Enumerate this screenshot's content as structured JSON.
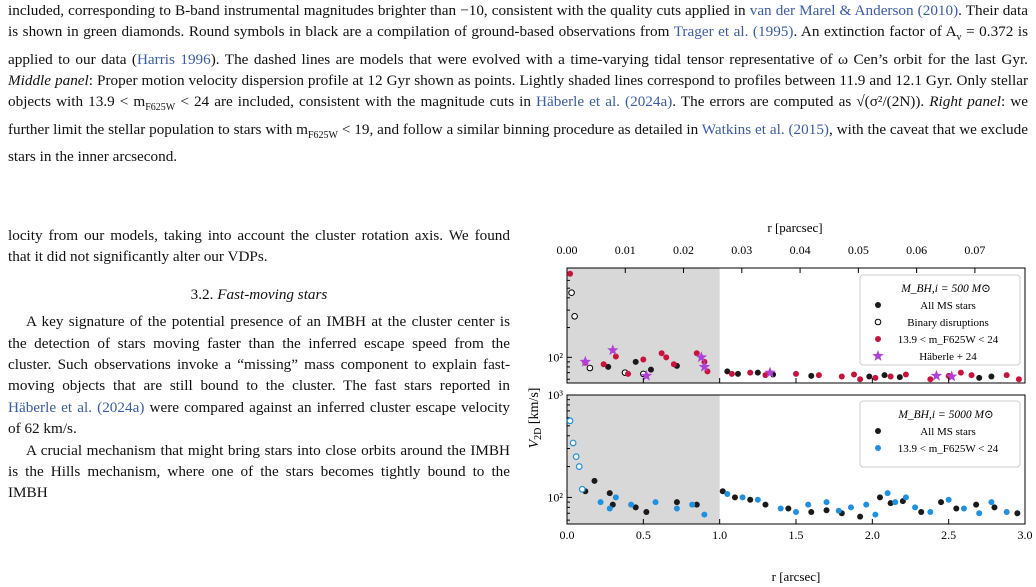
{
  "caption": {
    "line1": "included, corresponding to B-band instrumental magnitudes brighter than −10, consistent with the quality cuts applied in",
    "cite_vdm": "van der Marel & Anderson",
    "year_vdm": "2010",
    "line2_rest": ". Their data is shown in green diamonds. Round symbols in black are a compilation of ground-based observations from ",
    "cite_trager": "Trager et al.",
    "year_trager": "1995",
    "line3_mid": ". An extinction factor of A",
    "av_sub": "v",
    "av_rest": " = 0.372 is applied to our data (",
    "cite_harris": "Harris 1996",
    "line3_end": ").",
    "line4": "The dashed lines are models that were evolved with a time-varying tidal tensor representative of ω Cen’s orbit for the last Gyr.",
    "middle_label": "Middle panel",
    "middle_text": ": Proper motion velocity dispersion profile at 12 Gyr shown as points. Lightly shaded lines correspond to profiles between 11.9 and 12.1 Gyr. Only stellar objects with 13.9 < m",
    "mag_sub": "F625W",
    "middle_text2": " < 24 are included, consistent with the magnitude cuts in ",
    "cite_haberle": "Häberle et al.",
    "year_haberle": "2024a",
    "err_text": ". The errors are computed as ",
    "err_formula": "√(σ²/(2N))",
    "err_end": ". ",
    "right_label": "Right panel",
    "right_text": ": we further limit the stellar population to stars with m",
    "right_text2": " < 19, and follow a similar binning procedure as detailed in ",
    "cite_watkins": "Watkins et al.",
    "year_watkins": "2015",
    "right_text3": ", with the caveat that we exclude stars in the inner arcsecond."
  },
  "body": {
    "para1": "locity from our models, taking into account the cluster rotation axis. We found that it did not significantly alter our VDPs.",
    "section_number": "3.2.",
    "section_title": "Fast-moving stars",
    "para2a": "A key signature of the potential presence of an IMBH at the cluster center is the detection of stars moving faster than the inferred escape speed from the cluster. Such observations invoke a “missing” mass component to explain fast-moving objects that are still bound to the cluster. The fast stars reported in ",
    "cite_haberle": "Häberle et al.",
    "year_haberle": "2024a",
    "para2b": " were compared against an inferred cluster escape velocity of 62 km/s.",
    "para3": "A crucial mechanism that might bring stars into close orbits around the IMBH is the Hills mechanism, where one of the stars becomes tightly bound to the IMBH"
  },
  "figure": {
    "top_axis_label": "r [parcsec]",
    "top_ticks": [
      "0.00",
      "0.01",
      "0.02",
      "0.03",
      "0.04",
      "0.05",
      "0.06",
      "0.07"
    ],
    "bottom_axis_label": "r [arcsec]",
    "bottom_ticks": [
      "0.0",
      "0.5",
      "1.0",
      "1.5",
      "2.0",
      "2.5",
      "3.0"
    ],
    "y_axis_label": "V2D [km/s]",
    "y_ticks_top": [
      "10²"
    ],
    "y_ticks_bottom": [
      "10³",
      "10²"
    ],
    "colors": {
      "ms": "#1a1a1a",
      "red": "#c8143c",
      "purple": "#b040d8",
      "blue": "#2090e0",
      "shade": "#d8d8d8"
    },
    "panels": [
      {
        "legend_title": "M_BH,i = 500 M⊙",
        "legend": [
          "All MS stars",
          "Binary disruptions",
          "13.9 < m_F625W < 24",
          "Häberle + 24"
        ]
      },
      {
        "legend_title": "M_BH,i = 5000 M⊙",
        "legend": [
          "All MS stars",
          "13.9 < m_F625W < 24"
        ]
      }
    ]
  },
  "chart_data": [
    {
      "type": "scatter",
      "title": "M_BH,i = 500 M⊙",
      "xlabel": "r [arcsec]",
      "ylabel": "V2D [km/s]",
      "xlim": [
        0,
        3.0
      ],
      "ylog": true,
      "shaded_region": [
        0,
        1.0
      ],
      "series": [
        {
          "name": "All MS stars",
          "points": [
            [
              0.27,
              80
            ],
            [
              0.45,
              90
            ],
            [
              0.55,
              75
            ],
            [
              0.72,
              82
            ],
            [
              1.05,
              72
            ],
            [
              1.12,
              68
            ],
            [
              1.25,
              70
            ],
            [
              1.35,
              67
            ],
            [
              1.6,
              65
            ],
            [
              1.98,
              64
            ],
            [
              2.08,
              66
            ],
            [
              2.18,
              63
            ],
            [
              2.7,
              62
            ],
            [
              2.78,
              64
            ]
          ]
        },
        {
          "name": "Binary disruptions",
          "points": [
            [
              0.03,
              450
            ],
            [
              0.05,
              260
            ],
            [
              0.15,
              78
            ],
            [
              0.38,
              70
            ],
            [
              0.5,
              68
            ]
          ]
        },
        {
          "name": "13.9 < m_F625W < 24",
          "points": [
            [
              0.02,
              700
            ],
            [
              0.12,
              88
            ],
            [
              0.24,
              85
            ],
            [
              0.32,
              102
            ],
            [
              0.4,
              68
            ],
            [
              0.5,
              95
            ],
            [
              0.62,
              110
            ],
            [
              0.65,
              100
            ],
            [
              0.7,
              85
            ],
            [
              0.85,
              110
            ],
            [
              0.9,
              90
            ],
            [
              0.92,
              72
            ],
            [
              1.08,
              68
            ],
            [
              1.2,
              70
            ],
            [
              1.3,
              66
            ],
            [
              1.5,
              68
            ],
            [
              1.65,
              66
            ],
            [
              1.8,
              64
            ],
            [
              1.88,
              67
            ],
            [
              1.92,
              60
            ],
            [
              2.02,
              62
            ],
            [
              2.12,
              64
            ],
            [
              2.22,
              67
            ],
            [
              2.38,
              60
            ],
            [
              2.5,
              65
            ],
            [
              2.58,
              70
            ],
            [
              2.65,
              66
            ],
            [
              2.88,
              66
            ],
            [
              2.96,
              60
            ]
          ]
        },
        {
          "name": "Häberle + 24",
          "points": [
            [
              0.12,
              90
            ],
            [
              0.3,
              118
            ],
            [
              0.52,
              65
            ],
            [
              0.88,
              100
            ],
            [
              0.9,
              80
            ],
            [
              1.33,
              70
            ],
            [
              2.42,
              65
            ],
            [
              2.52,
              64
            ]
          ]
        }
      ]
    },
    {
      "type": "scatter",
      "title": "M_BH,i = 5000 M⊙",
      "xlabel": "r [arcsec]",
      "ylabel": "V2D [km/s]",
      "xlim": [
        0,
        3.0
      ],
      "ylog": true,
      "shaded_region": [
        0,
        1.0
      ],
      "series": [
        {
          "name": "All MS stars",
          "points": [
            [
              0.12,
              115
            ],
            [
              0.18,
              145
            ],
            [
              0.28,
              110
            ],
            [
              0.3,
              85
            ],
            [
              0.45,
              80
            ],
            [
              0.52,
              72
            ],
            [
              0.72,
              90
            ],
            [
              0.85,
              85
            ],
            [
              1.02,
              115
            ],
            [
              1.1,
              100
            ],
            [
              1.2,
              95
            ],
            [
              1.3,
              85
            ],
            [
              1.45,
              78
            ],
            [
              1.6,
              72
            ],
            [
              1.7,
              75
            ],
            [
              1.8,
              70
            ],
            [
              1.92,
              65
            ],
            [
              2.05,
              100
            ],
            [
              2.12,
              88
            ],
            [
              2.2,
              92
            ],
            [
              2.32,
              72
            ],
            [
              2.45,
              90
            ],
            [
              2.55,
              78
            ],
            [
              2.68,
              85
            ],
            [
              2.8,
              80
            ],
            [
              2.95,
              70
            ]
          ]
        },
        {
          "name": "13.9 < m_F625W < 24",
          "points": [
            [
              0.02,
              560
            ],
            [
              0.04,
              340
            ],
            [
              0.06,
              250
            ],
            [
              0.08,
              200
            ],
            [
              0.1,
              120
            ],
            [
              0.22,
              90
            ],
            [
              0.28,
              78
            ],
            [
              0.32,
              100
            ],
            [
              0.42,
              85
            ],
            [
              0.58,
              90
            ],
            [
              0.72,
              78
            ],
            [
              0.82,
              85
            ],
            [
              0.9,
              68
            ],
            [
              1.05,
              108
            ],
            [
              1.15,
              100
            ],
            [
              1.25,
              95
            ],
            [
              1.4,
              78
            ],
            [
              1.5,
              72
            ],
            [
              1.58,
              85
            ],
            [
              1.7,
              90
            ],
            [
              1.78,
              74
            ],
            [
              1.86,
              80
            ],
            [
              1.96,
              85
            ],
            [
              2.02,
              68
            ],
            [
              2.1,
              110
            ],
            [
              2.15,
              90
            ],
            [
              2.22,
              100
            ],
            [
              2.28,
              80
            ],
            [
              2.38,
              72
            ],
            [
              2.5,
              95
            ],
            [
              2.6,
              78
            ],
            [
              2.7,
              70
            ],
            [
              2.78,
              90
            ],
            [
              2.88,
              72
            ]
          ]
        }
      ]
    }
  ]
}
